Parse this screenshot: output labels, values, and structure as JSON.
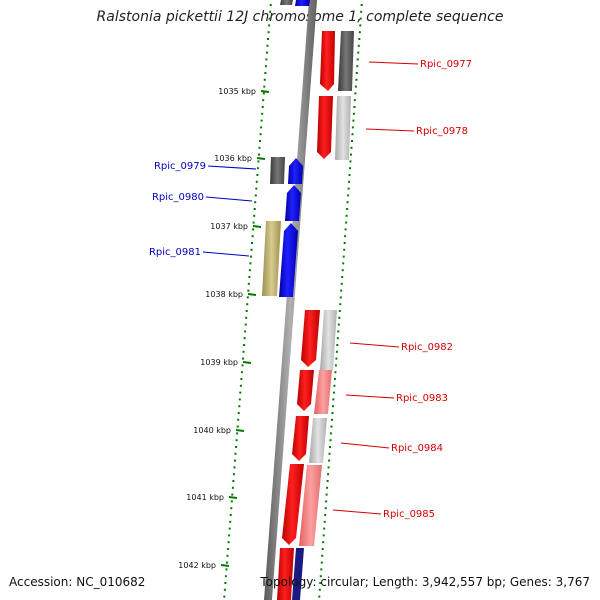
{
  "title": "Ralstonia pickettii 12J chromosome 1, complete sequence",
  "footer": {
    "accession": "Accession: NC_010682",
    "topology": "Topology: circular; Length: 3,942,557 bp; Genes: 3,767"
  },
  "scale_labels": [
    "1035 kbp",
    "1036 kbp",
    "1037 kbp",
    "1038 kbp",
    "1039 kbp",
    "1040 kbp",
    "1041 kbp",
    "1042 kbp"
  ],
  "genes": [
    {
      "label": "Rpic_0977",
      "strand": "forward",
      "color": "#d40000"
    },
    {
      "label": "Rpic_0978",
      "strand": "forward",
      "color": "#d40000"
    },
    {
      "label": "Rpic_0979",
      "strand": "reverse",
      "color": "#0000c0"
    },
    {
      "label": "Rpic_0980",
      "strand": "reverse",
      "color": "#0000c0"
    },
    {
      "label": "Rpic_0981",
      "strand": "reverse",
      "color": "#0000c0"
    },
    {
      "label": "Rpic_0982",
      "strand": "forward",
      "color": "#d40000"
    },
    {
      "label": "Rpic_0983",
      "strand": "forward",
      "color": "#d40000"
    },
    {
      "label": "Rpic_0984",
      "strand": "forward",
      "color": "#d40000"
    },
    {
      "label": "Rpic_0985",
      "strand": "forward",
      "color": "#d40000"
    }
  ],
  "colors": {
    "forward_gene": "#ff0000",
    "reverse_gene": "#0000ff",
    "backbone": "#808080",
    "tick": "#007a00",
    "cog_dark": "#555555",
    "cog_light": "#c8c8c8",
    "cog_pink": "#f08080",
    "cog_olive": "#b8aa70"
  }
}
